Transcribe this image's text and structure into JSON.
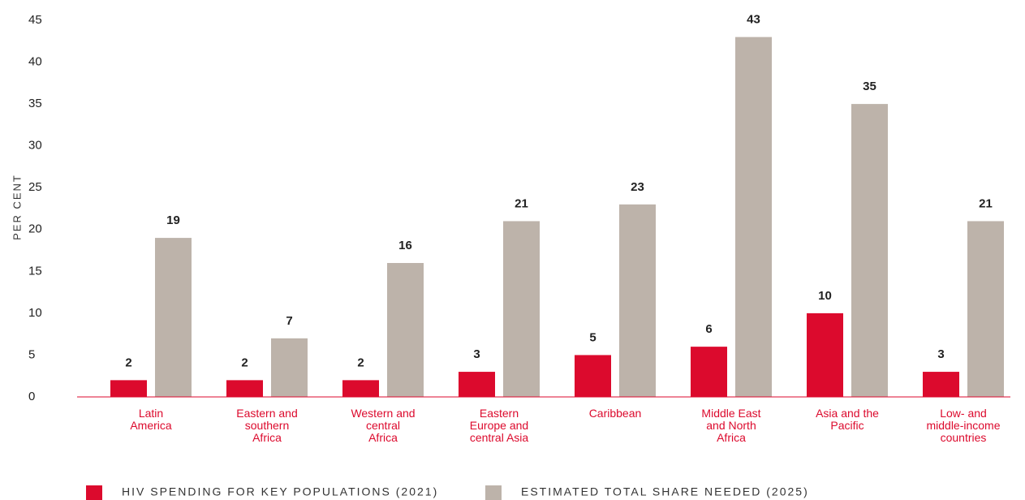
{
  "chart_data": {
    "type": "bar",
    "y_label": "PER CENT",
    "categories": [
      "Latin\nAmerica",
      "Eastern and\nsouthern\nAfrica",
      "Western and\ncentral\nAfrica",
      "Eastern\nEurope and\ncentral Asia",
      "Caribbean",
      "Middle East\nand North\nAfrica",
      "Asia and the\nPacific",
      "Low- and\nmiddle-income\ncountries"
    ],
    "series": [
      {
        "name": "HIV SPENDING FOR KEY POPULATIONS (2021)",
        "color": "#dc0a2d",
        "values": [
          2,
          2,
          2,
          3,
          5,
          6,
          10,
          3
        ]
      },
      {
        "name": "ESTIMATED TOTAL SHARE NEEDED (2025)",
        "color": "#bdb3aa",
        "values": [
          19,
          7,
          16,
          21,
          23,
          43,
          35,
          21
        ]
      }
    ],
    "ylim": [
      0,
      45
    ],
    "yticks": [
      0,
      5,
      10,
      15,
      20,
      25,
      30,
      35,
      40,
      45
    ],
    "axis_color": "#dc0a2d"
  }
}
